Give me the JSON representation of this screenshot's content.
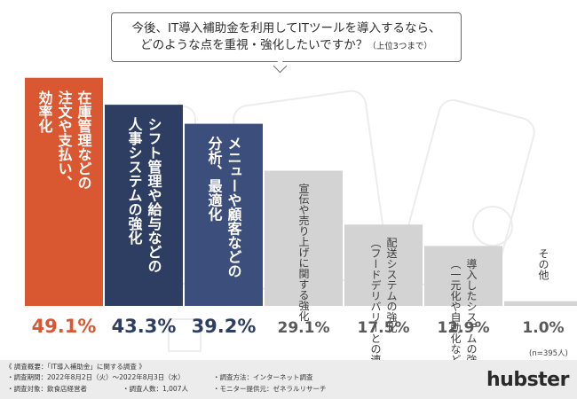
{
  "question": {
    "line1": "今後、IT導入補助金を利用してITツールを導入するなら、",
    "line2": "どのような点を重視・強化したいですか？",
    "line2_note": "（上位3つまで）"
  },
  "note": "(n=395人)",
  "footer": {
    "title": "《 調査概要：「IT導入補助金」に関する調査 》",
    "period": "・調査期間：2022年8月2日（火）〜2022年8月3日（水）",
    "method": "・調査方法：インターネット調査",
    "target": "・調査対象：飲食店経営者",
    "count": "・調査人数：1,007人",
    "provider": "・モニター提供元：ゼネラルリサーチ"
  },
  "brand": "hubster",
  "chart_data": {
    "type": "bar",
    "categories": [
      [
        "在庫管理などの",
        "注文や支払い、",
        "効率化"
      ],
      [
        "シフト管理や給与などの",
        "人事システムの強化"
      ],
      [
        "メニューや顧客などの",
        "分析、最適化"
      ],
      [
        "宣伝や売り上げに関する強化"
      ],
      [
        "配送システムの強化",
        "（フードデリバリーとの連携など）"
      ],
      [
        "導入したシステムの強化",
        "（一元化や自動化など）"
      ],
      [
        "その他"
      ]
    ],
    "values": [
      49.1,
      43.3,
      39.2,
      29.1,
      17.5,
      12.9,
      1.0
    ],
    "value_labels": [
      "49.1%",
      "43.3%",
      "39.2%",
      "29.1%",
      "17.5%",
      "12.9%",
      "1.0%"
    ],
    "ylim": [
      0,
      50
    ],
    "colors": {
      "top1": "#d95832",
      "top2": "#2e3e63",
      "top3": "#3c4e7b",
      "other": "#d3d3d3",
      "top1_text": "#d95832",
      "top_text": "#2e3e63",
      "other_text": "#5a5a5a"
    }
  }
}
